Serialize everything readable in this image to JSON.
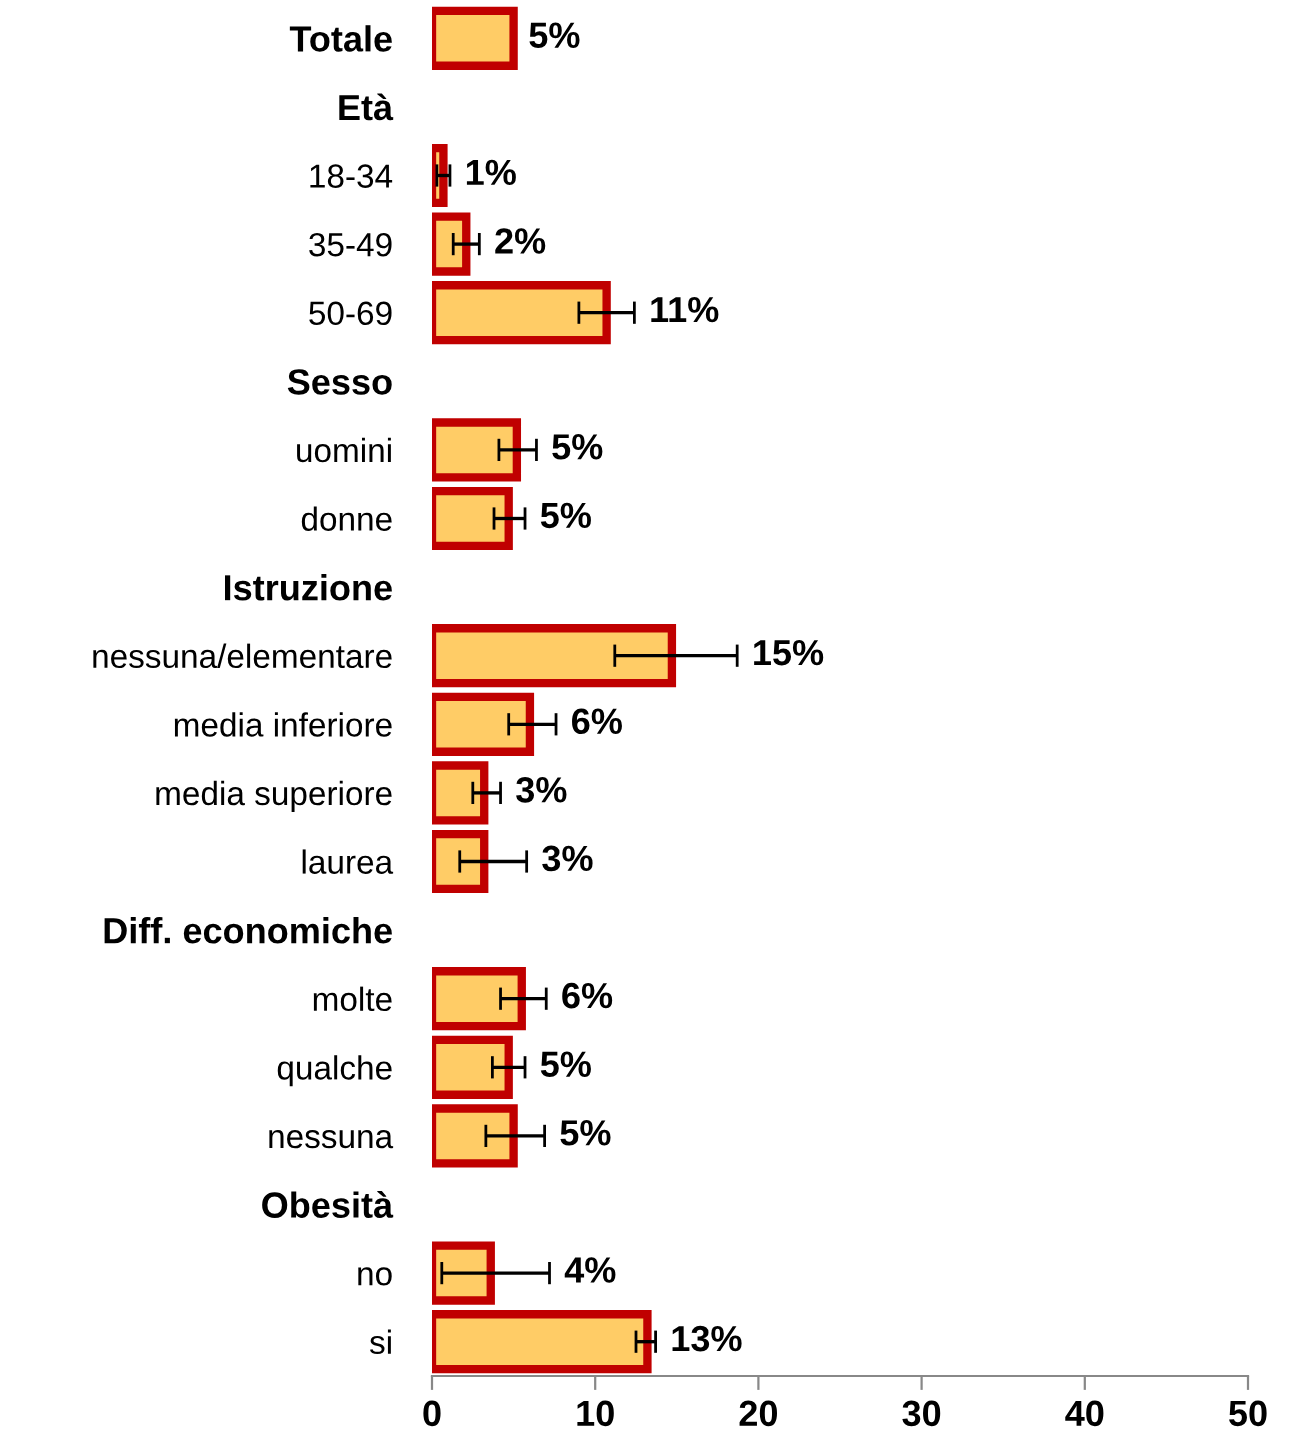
{
  "chart_data": {
    "type": "bar",
    "orientation": "horizontal",
    "categories": [
      "Totale",
      "Età",
      "18-34",
      "35-49",
      "50-69",
      "Sesso",
      "uomini",
      "donne",
      "Istruzione",
      "nessuna/elementare",
      "media inferiore",
      "media superiore",
      "laurea",
      "Diff. economiche",
      "molte",
      "qualche",
      "nessuna",
      "Obesità",
      "no",
      "si"
    ],
    "values": [
      5.0,
      null,
      0.7,
      2.1,
      10.7,
      null,
      5.2,
      4.7,
      null,
      14.7,
      6.0,
      3.2,
      3.2,
      null,
      5.5,
      4.7,
      5.0,
      null,
      3.6,
      13.2
    ],
    "errors": [
      null,
      null,
      [
        0.3,
        1.1
      ],
      [
        1.3,
        2.9
      ],
      [
        9.0,
        12.4
      ],
      null,
      [
        4.1,
        6.4
      ],
      [
        3.8,
        5.7
      ],
      null,
      [
        11.2,
        18.7
      ],
      [
        4.7,
        7.6
      ],
      [
        2.5,
        4.2
      ],
      [
        1.7,
        5.8
      ],
      null,
      [
        4.2,
        7.0
      ],
      [
        3.7,
        5.7
      ],
      [
        3.3,
        6.9
      ],
      null,
      [
        0.6,
        7.2
      ],
      [
        12.5,
        13.7
      ]
    ],
    "value_labels": [
      "5%",
      null,
      "1%",
      "2%",
      "11%",
      null,
      "5%",
      "5%",
      null,
      "15%",
      "6%",
      "3%",
      "3%",
      null,
      "6%",
      "5%",
      "5%",
      null,
      "4%",
      "13%"
    ],
    "color": "#ffcc66",
    "xlim": [
      0,
      50
    ],
    "xticks": [
      0,
      10,
      20,
      30,
      40,
      50
    ],
    "grid": false,
    "legend": false
  }
}
